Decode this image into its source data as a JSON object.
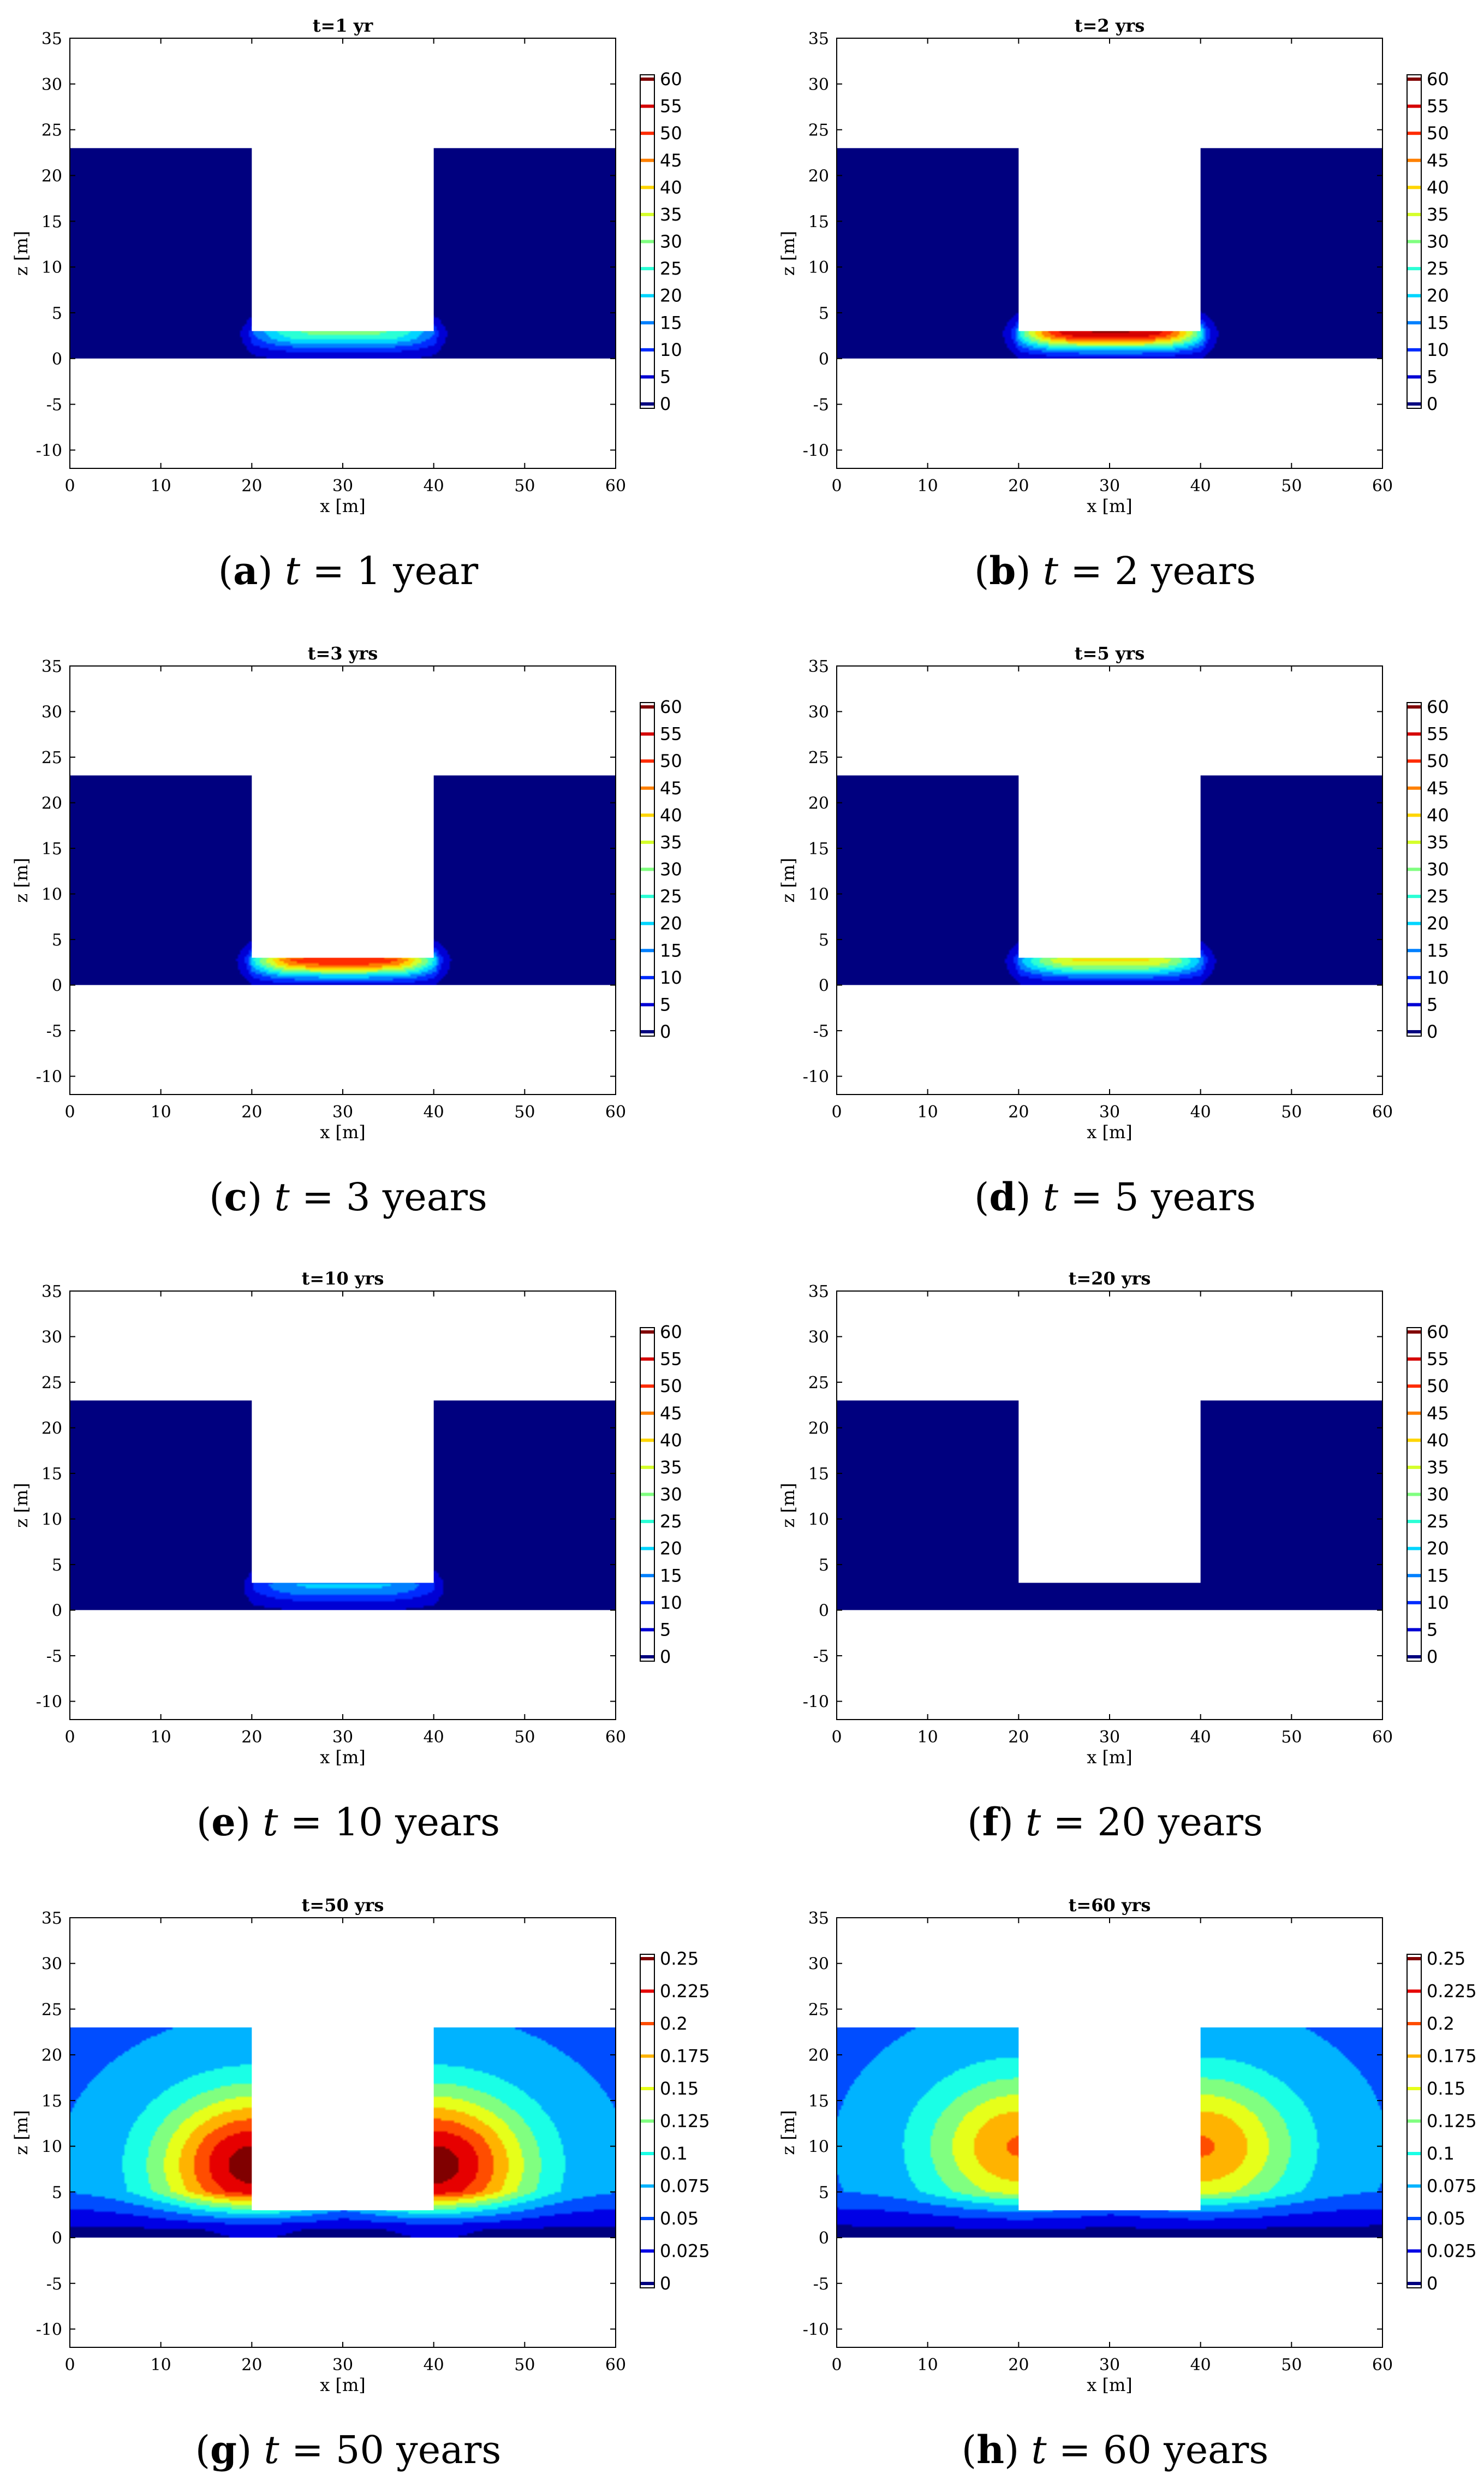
{
  "figure": {
    "colors": {
      "deep_blue": "#0a0a8c",
      "background_blue": "#0a1a8e",
      "jet": [
        "#00007f",
        "#0000ff",
        "#0080ff",
        "#00ffff",
        "#80ff80",
        "#ffff00",
        "#ff8000",
        "#ff0000",
        "#800000"
      ]
    }
  },
  "chart_data": [
    {
      "type": "heatmap",
      "id": "a",
      "title": "t=1 yr",
      "caption": {
        "letter": "a",
        "time": "t",
        "rest": " = 1 year"
      },
      "xlabel": "x [m]",
      "ylabel": "z [m]",
      "xlim": [
        0,
        60
      ],
      "ylim": [
        -12,
        35
      ],
      "xticks": [
        0,
        10,
        20,
        30,
        40,
        50,
        60
      ],
      "yticks": [
        -10,
        -5,
        0,
        5,
        10,
        15,
        20,
        25,
        30,
        35
      ],
      "domain": {
        "ground_top": 23,
        "bottom": 0,
        "pit_x": [
          20,
          40
        ],
        "pit_floor": 3
      },
      "colorbar": {
        "ticks": [
          "0",
          "5",
          "10",
          "15",
          "20",
          "25",
          "30",
          "35",
          "40",
          "45",
          "50",
          "55",
          "60"
        ],
        "range": [
          0,
          60
        ]
      },
      "field_peak": 28,
      "field_location": "pit floor"
    },
    {
      "type": "heatmap",
      "id": "b",
      "title": "t=2 yrs",
      "caption": {
        "letter": "b",
        "time": "t",
        "rest": " = 2 years"
      },
      "xlabel": "x [m]",
      "ylabel": "z [m]",
      "xlim": [
        0,
        60
      ],
      "ylim": [
        -12,
        35
      ],
      "xticks": [
        0,
        10,
        20,
        30,
        40,
        50,
        60
      ],
      "yticks": [
        -10,
        -5,
        0,
        5,
        10,
        15,
        20,
        25,
        30,
        35
      ],
      "domain": {
        "ground_top": 23,
        "bottom": 0,
        "pit_x": [
          20,
          40
        ],
        "pit_floor": 3
      },
      "colorbar": {
        "ticks": [
          "0",
          "5",
          "10",
          "15",
          "20",
          "25",
          "30",
          "35",
          "40",
          "45",
          "50",
          "55",
          "60"
        ],
        "range": [
          0,
          60
        ]
      },
      "field_peak": 57,
      "field_location": "pit floor"
    },
    {
      "type": "heatmap",
      "id": "c",
      "title": "t=3 yrs",
      "caption": {
        "letter": "c",
        "time": "t",
        "rest": " = 3 years"
      },
      "xlabel": "x [m]",
      "ylabel": "z [m]",
      "xlim": [
        0,
        60
      ],
      "ylim": [
        -12,
        35
      ],
      "xticks": [
        0,
        10,
        20,
        30,
        40,
        50,
        60
      ],
      "yticks": [
        -10,
        -5,
        0,
        5,
        10,
        15,
        20,
        25,
        30,
        35
      ],
      "domain": {
        "ground_top": 23,
        "bottom": 0,
        "pit_x": [
          20,
          40
        ],
        "pit_floor": 3
      },
      "colorbar": {
        "ticks": [
          "0",
          "5",
          "10",
          "15",
          "20",
          "25",
          "30",
          "35",
          "40",
          "45",
          "50",
          "55",
          "60"
        ],
        "range": [
          0,
          60
        ]
      },
      "field_peak": 52,
      "field_location": "pit floor"
    },
    {
      "type": "heatmap",
      "id": "d",
      "title": "t=5 yrs",
      "caption": {
        "letter": "d",
        "time": "t",
        "rest": " = 5 years"
      },
      "xlabel": "x [m]",
      "ylabel": "z [m]",
      "xlim": [
        0,
        60
      ],
      "ylim": [
        -12,
        35
      ],
      "xticks": [
        0,
        10,
        20,
        30,
        40,
        50,
        60
      ],
      "yticks": [
        -10,
        -5,
        0,
        5,
        10,
        15,
        20,
        25,
        30,
        35
      ],
      "domain": {
        "ground_top": 23,
        "bottom": 0,
        "pit_x": [
          20,
          40
        ],
        "pit_floor": 3
      },
      "colorbar": {
        "ticks": [
          "0",
          "5",
          "10",
          "15",
          "20",
          "25",
          "30",
          "35",
          "40",
          "45",
          "50",
          "55",
          "60"
        ],
        "range": [
          0,
          60
        ]
      },
      "field_peak": 38,
      "field_location": "pit floor"
    },
    {
      "type": "heatmap",
      "id": "e",
      "title": "t=10 yrs",
      "caption": {
        "letter": "e",
        "time": "t",
        "rest": " = 10 years"
      },
      "xlabel": "x [m]",
      "ylabel": "z [m]",
      "xlim": [
        0,
        60
      ],
      "ylim": [
        -12,
        35
      ],
      "xticks": [
        0,
        10,
        20,
        30,
        40,
        50,
        60
      ],
      "yticks": [
        -10,
        -5,
        0,
        5,
        10,
        15,
        20,
        25,
        30,
        35
      ],
      "domain": {
        "ground_top": 23,
        "bottom": 0,
        "pit_x": [
          20,
          40
        ],
        "pit_floor": 3
      },
      "colorbar": {
        "ticks": [
          "0",
          "5",
          "10",
          "15",
          "20",
          "25",
          "30",
          "35",
          "40",
          "45",
          "50",
          "55",
          "60"
        ],
        "range": [
          0,
          60
        ]
      },
      "field_peak": 18,
      "field_location": "pit floor"
    },
    {
      "type": "heatmap",
      "id": "f",
      "title": "t=20 yrs",
      "caption": {
        "letter": "f",
        "time": "t",
        "rest": " = 20 years"
      },
      "xlabel": "x [m]",
      "ylabel": "z [m]",
      "xlim": [
        0,
        60
      ],
      "ylim": [
        -12,
        35
      ],
      "xticks": [
        0,
        10,
        20,
        30,
        40,
        50,
        60
      ],
      "yticks": [
        -10,
        -5,
        0,
        5,
        10,
        15,
        20,
        25,
        30,
        35
      ],
      "domain": {
        "ground_top": 23,
        "bottom": 0,
        "pit_x": [
          20,
          40
        ],
        "pit_floor": 3
      },
      "colorbar": {
        "ticks": [
          "0",
          "5",
          "10",
          "15",
          "20",
          "25",
          "30",
          "35",
          "40",
          "45",
          "50",
          "55",
          "60"
        ],
        "range": [
          0,
          60
        ]
      },
      "field_peak": 0,
      "field_location": "none"
    },
    {
      "type": "heatmap",
      "id": "g",
      "title": "t=50 yrs",
      "caption": {
        "letter": "g",
        "time": "t",
        "rest": " = 50 years"
      },
      "xlabel": "x [m]",
      "ylabel": "z [m]",
      "xlim": [
        0,
        60
      ],
      "ylim": [
        -12,
        35
      ],
      "xticks": [
        0,
        10,
        20,
        30,
        40,
        50,
        60
      ],
      "yticks": [
        -10,
        -5,
        0,
        5,
        10,
        15,
        20,
        25,
        30,
        35
      ],
      "domain": {
        "ground_top": 23,
        "bottom": 0,
        "pit_x": [
          20,
          40
        ],
        "pit_floor": 3
      },
      "colorbar": {
        "ticks": [
          "0",
          "0.025",
          "0.05",
          "0.075",
          "0.1",
          "0.125",
          "0.15",
          "0.175",
          "0.2",
          "0.225",
          "0.25"
        ],
        "range": [
          0,
          0.25
        ]
      },
      "field_peak": 0.25,
      "field_location": "pit walls",
      "field_core_z": 8,
      "field_background": 0.06
    },
    {
      "type": "heatmap",
      "id": "h",
      "title": "t=60 yrs",
      "caption": {
        "letter": "h",
        "time": "t",
        "rest": " = 60 years"
      },
      "xlabel": "x [m]",
      "ylabel": "z [m]",
      "xlim": [
        0,
        60
      ],
      "ylim": [
        -12,
        35
      ],
      "xticks": [
        0,
        10,
        20,
        30,
        40,
        50,
        60
      ],
      "yticks": [
        -10,
        -5,
        0,
        5,
        10,
        15,
        20,
        25,
        30,
        35
      ],
      "domain": {
        "ground_top": 23,
        "bottom": 0,
        "pit_x": [
          20,
          40
        ],
        "pit_floor": 3
      },
      "colorbar": {
        "ticks": [
          "0",
          "0.025",
          "0.05",
          "0.075",
          "0.1",
          "0.125",
          "0.15",
          "0.175",
          "0.2",
          "0.225",
          "0.25"
        ],
        "range": [
          0,
          0.25
        ]
      },
      "field_peak": 0.19,
      "field_location": "pit walls",
      "field_core_z": 10,
      "field_background": 0.06
    }
  ]
}
